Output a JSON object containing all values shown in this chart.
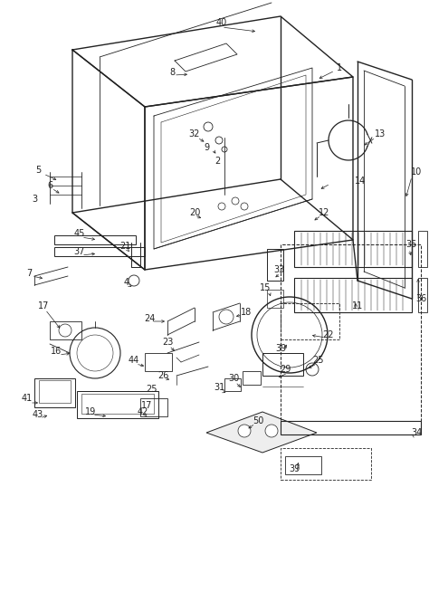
{
  "background_color": "#ffffff",
  "line_color": "#222222",
  "fig_width": 4.74,
  "fig_height": 6.54,
  "dpi": 100
}
